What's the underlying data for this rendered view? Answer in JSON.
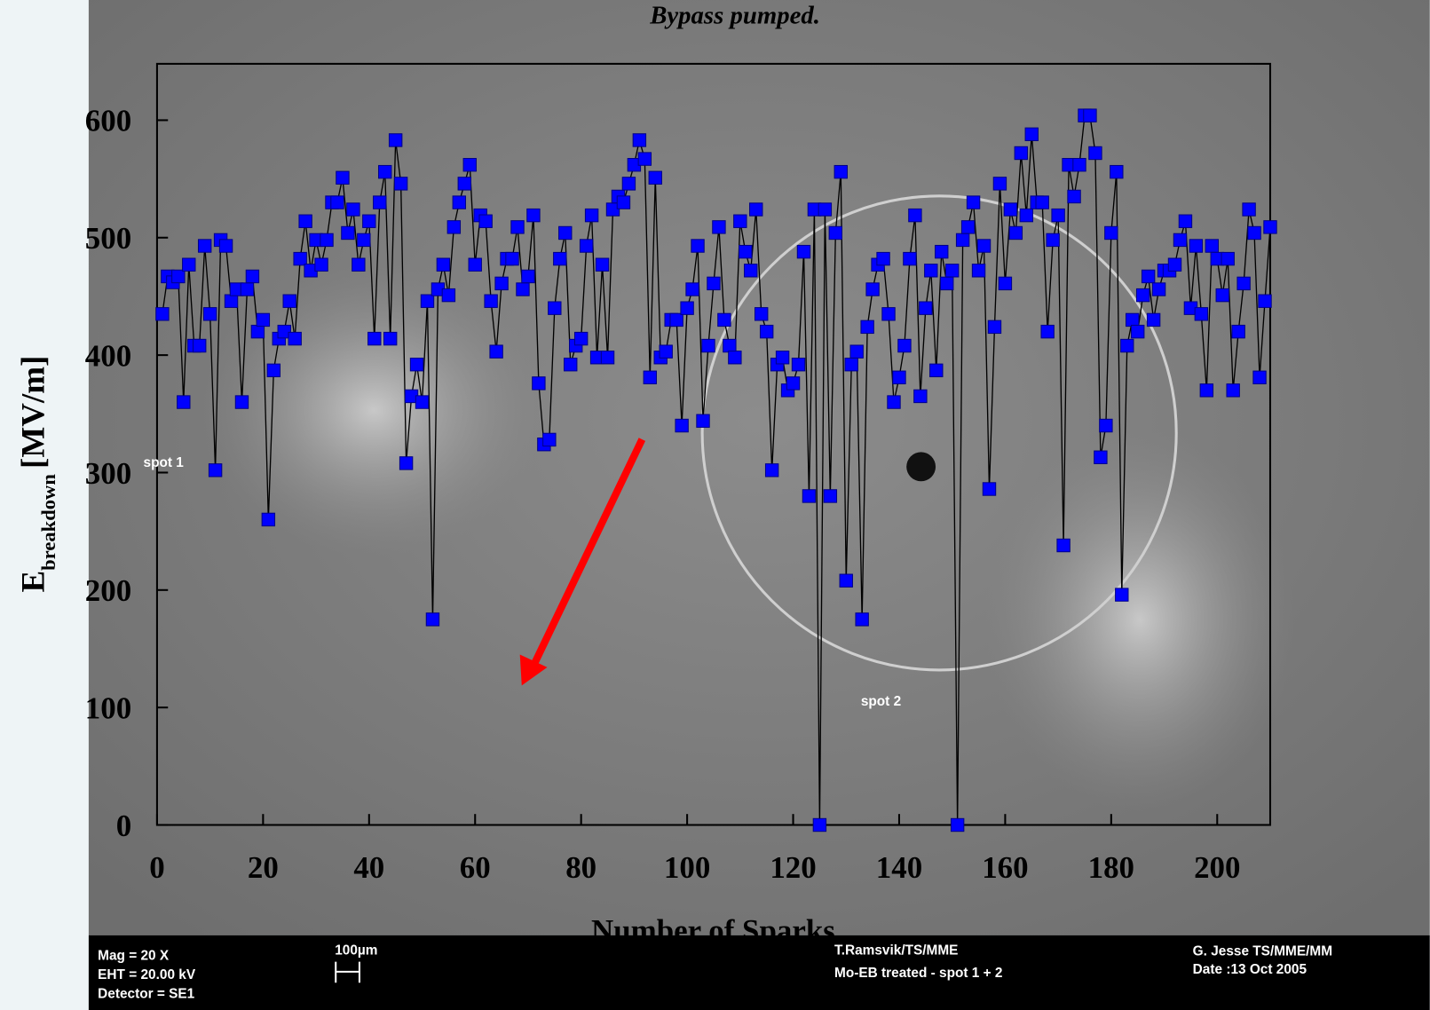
{
  "chart_data": {
    "type": "line",
    "title": "Bypass pumped.",
    "x_label": "Number of Sparks",
    "y_label": "E",
    "y_label_subscript": "breakdown",
    "y_label_unit": "[MV/m]",
    "annotations": [
      "spot 1",
      "spot 2"
    ],
    "info_bar": {
      "left": [
        "Mag =      20 X",
        "EHT = 20.00 kV",
        "Detector = SE1"
      ],
      "scale": "100µm",
      "middle": [
        "T.Ramsvik/TS/MME",
        "Mo-EB treated  - spot 1 + 2"
      ],
      "right": [
        "G. Jesse TS/MME/MM",
        "Date :13 Oct 2005"
      ]
    },
    "xlim": [
      0,
      210
    ],
    "ylim": [
      0,
      648
    ],
    "xticks": [
      0,
      20,
      40,
      60,
      80,
      100,
      120,
      140,
      160,
      180,
      200
    ],
    "yticks": [
      0,
      100,
      200,
      300,
      400,
      500,
      600
    ],
    "line_color": "#000000",
    "series": [
      {
        "color": "#0000ff",
        "x": [
          1,
          2,
          3,
          4,
          5,
          6,
          7,
          8,
          9,
          10,
          11,
          12,
          13,
          14,
          15,
          16,
          17,
          18,
          19,
          20,
          21,
          22,
          23,
          24,
          25,
          26,
          27,
          28,
          29,
          30,
          31,
          32,
          33,
          34,
          35,
          36,
          37,
          38,
          39,
          40,
          41,
          42,
          43,
          44,
          45,
          46,
          47,
          48,
          49,
          50,
          51,
          52,
          53,
          54,
          55,
          56,
          57,
          58,
          59,
          60,
          61,
          62,
          63,
          64,
          65,
          66,
          67,
          68,
          69,
          70,
          71,
          72,
          73,
          74,
          75,
          76,
          77,
          78,
          79,
          80,
          81,
          82,
          83,
          84,
          85,
          86,
          87,
          88,
          89,
          90,
          91,
          92,
          93,
          94,
          95,
          96,
          97,
          98,
          99,
          100,
          101,
          102,
          103,
          104,
          105,
          106,
          107,
          108,
          109,
          110,
          111,
          112,
          113,
          114,
          115,
          116,
          117,
          118,
          119,
          120,
          121,
          122,
          123,
          124,
          125,
          126,
          127,
          128,
          129,
          130,
          131,
          132,
          133,
          134,
          135,
          136,
          137,
          138,
          139,
          140,
          141,
          142,
          143,
          144,
          145,
          146,
          147,
          148,
          149,
          150,
          151,
          152,
          153,
          154,
          155,
          156,
          157,
          158,
          159,
          160,
          161,
          162,
          163,
          164,
          165,
          166,
          167,
          168,
          169,
          170,
          171,
          172,
          173,
          174,
          175,
          176,
          177,
          178,
          179,
          180,
          181,
          182,
          183,
          184,
          185,
          186,
          187,
          188,
          189,
          190,
          191,
          192,
          193,
          194,
          195,
          196,
          197,
          198,
          199,
          200,
          201,
          202,
          203,
          204,
          205,
          206,
          207,
          208,
          209,
          210
        ],
        "values": [
          435,
          467,
          462,
          467,
          360,
          477,
          408,
          408,
          493,
          435,
          302,
          498,
          493,
          446,
          456,
          360,
          456,
          467,
          420,
          430,
          260,
          387,
          414,
          420,
          446,
          414,
          482,
          514,
          472,
          498,
          477,
          498,
          530,
          530,
          551,
          504,
          524,
          477,
          498,
          514,
          414,
          530,
          556,
          414,
          583,
          546,
          308,
          365,
          392,
          360,
          446,
          175,
          456,
          477,
          451,
          509,
          530,
          546,
          562,
          477,
          519,
          514,
          446,
          403,
          461,
          482,
          482,
          509,
          456,
          467,
          519,
          376,
          324,
          328,
          440,
          482,
          504,
          392,
          408,
          414,
          493,
          519,
          398,
          477,
          398,
          524,
          535,
          530,
          546,
          562,
          583,
          567,
          381,
          551,
          398,
          403,
          430,
          430,
          340,
          440,
          456,
          493,
          344,
          408,
          461,
          509,
          430,
          408,
          398,
          514,
          488,
          472,
          524,
          435,
          420,
          302,
          392,
          398,
          370,
          376,
          392,
          488,
          280,
          524,
          0,
          524,
          280,
          504,
          556,
          208,
          392,
          403,
          175,
          424,
          456,
          477,
          482,
          435,
          360,
          381,
          408,
          482,
          519,
          365,
          440,
          472,
          387,
          488,
          461,
          472,
          0,
          498,
          509,
          530,
          472,
          493,
          286,
          424,
          546,
          461,
          524,
          504,
          572,
          519,
          588,
          530,
          530,
          420,
          498,
          519,
          238,
          562,
          535,
          562,
          604,
          604,
          572,
          313,
          340,
          504,
          556,
          196,
          408,
          430,
          420,
          451,
          467,
          430,
          456,
          472,
          472,
          477,
          498,
          514,
          440,
          493,
          435,
          370,
          493,
          482,
          451,
          482,
          370,
          420,
          461,
          524,
          504,
          381,
          446,
          509
        ]
      }
    ]
  }
}
